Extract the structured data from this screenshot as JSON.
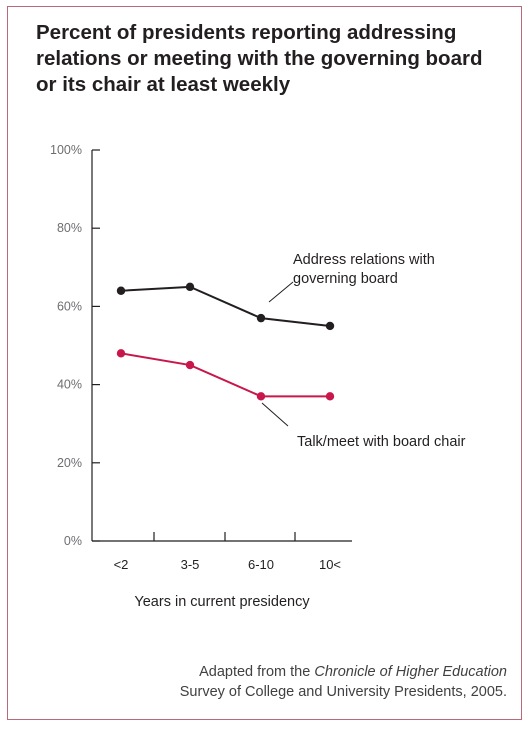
{
  "chart_data": {
    "type": "line",
    "title": "Percent of presidents reporting addressing relations or meeting with the governing board or its chair at least weekly",
    "xlabel": "Years in current presidency",
    "ylabel": "",
    "categories": [
      "<2",
      "3-5",
      "6-10",
      "10<"
    ],
    "y_ticks": [
      "0%",
      "20%",
      "40%",
      "60%",
      "80%",
      "100%"
    ],
    "ylim": [
      0,
      100
    ],
    "grid": false,
    "series": [
      {
        "name_lines": [
          "Address relations with",
          "governing board"
        ],
        "color": "#231f20",
        "values": [
          64,
          65,
          57,
          55
        ]
      },
      {
        "name_lines": [
          "Talk/meet with board chair"
        ],
        "color": "#c8174b",
        "values": [
          48,
          45,
          37,
          37
        ]
      }
    ]
  },
  "source": {
    "prefix": "Adapted from the",
    "publication": "Chronicle of Higher Education",
    "line2": "Survey of College and University Presidents, 2005."
  },
  "colors": {
    "border": "#b86a7a",
    "text": "#231f20",
    "accent": "#c8174b"
  }
}
